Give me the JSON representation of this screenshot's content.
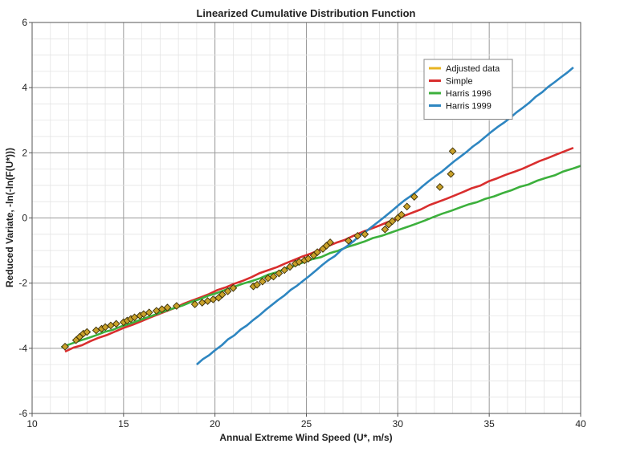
{
  "chart_data": {
    "type": "scatter",
    "title": "Linearized Cumulative Distribution Function",
    "xlabel": "Annual Extreme Wind Speed (U*, m/s)",
    "ylabel": "Reduced Variate, -ln(-ln(F(U*)))",
    "xlim": [
      10,
      40
    ],
    "ylim": [
      -6,
      6
    ],
    "xticks": [
      10,
      15,
      20,
      25,
      30,
      35,
      40
    ],
    "yticks": [
      -6,
      -4,
      -2,
      0,
      2,
      4,
      6
    ],
    "xtick_labels": [
      "10",
      "15",
      "20",
      "25",
      "30",
      "35",
      "40"
    ],
    "ytick_labels": [
      "-6",
      "-4",
      "-2",
      "0",
      "2",
      "4",
      "6"
    ],
    "grid": true,
    "legend_position": "top-right",
    "series": [
      {
        "name": "Adjusted data",
        "kind": "markers",
        "color": "#e8b422",
        "marker_fill": "#c9a12a",
        "x": [
          11.8,
          12.4,
          12.6,
          12.8,
          13.0,
          13.5,
          13.8,
          14.0,
          14.3,
          14.6,
          15.0,
          15.2,
          15.4,
          15.6,
          15.9,
          16.1,
          16.4,
          16.8,
          17.1,
          17.4,
          17.9,
          18.9,
          19.3,
          19.6,
          19.9,
          20.2,
          20.4,
          20.7,
          21.0,
          22.1,
          22.3,
          22.6,
          22.9,
          23.2,
          23.5,
          23.8,
          24.1,
          24.4,
          24.6,
          24.9,
          25.1,
          25.4,
          25.6,
          25.9,
          26.1,
          26.3,
          27.3,
          27.8,
          28.2,
          29.3,
          29.5,
          29.7,
          30.0,
          30.2,
          30.5,
          30.9,
          32.3,
          32.9,
          33.0
        ],
        "y": [
          -3.95,
          -3.75,
          -3.65,
          -3.55,
          -3.5,
          -3.45,
          -3.4,
          -3.35,
          -3.3,
          -3.25,
          -3.2,
          -3.15,
          -3.1,
          -3.05,
          -3.0,
          -2.95,
          -2.9,
          -2.85,
          -2.8,
          -2.75,
          -2.7,
          -2.65,
          -2.6,
          -2.55,
          -2.5,
          -2.45,
          -2.35,
          -2.25,
          -2.15,
          -2.1,
          -2.05,
          -1.95,
          -1.85,
          -1.8,
          -1.7,
          -1.6,
          -1.5,
          -1.4,
          -1.35,
          -1.3,
          -1.25,
          -1.15,
          -1.05,
          -0.95,
          -0.85,
          -0.75,
          -0.7,
          -0.55,
          -0.5,
          -0.35,
          -0.2,
          -0.1,
          0.0,
          0.1,
          0.35,
          0.65,
          0.95,
          1.35,
          2.05
        ]
      },
      {
        "name": "Simple",
        "kind": "line",
        "color": "#d92e2e",
        "x": [
          11.8,
          39.6
        ],
        "y": [
          -4.1,
          2.15
        ]
      },
      {
        "name": "Harris 1996",
        "kind": "line",
        "color": "#3cb03c",
        "x": [
          11.6,
          40.0
        ],
        "y": [
          -3.97,
          1.6
        ]
      },
      {
        "name": "Harris 1999",
        "kind": "line",
        "color": "#2e86c1",
        "x": [
          19.0,
          39.6
        ],
        "y": [
          -4.5,
          4.62
        ]
      }
    ]
  }
}
